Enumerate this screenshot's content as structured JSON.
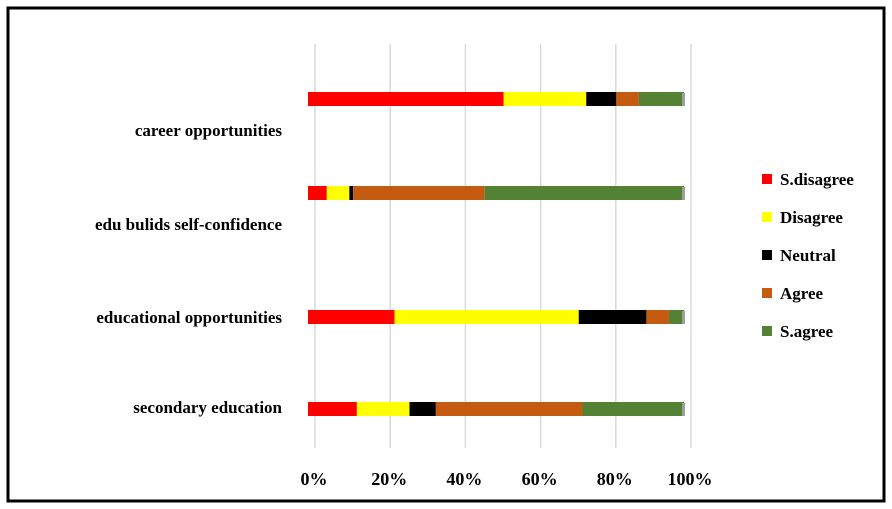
{
  "chart_data": {
    "type": "bar",
    "orientation": "horizontal",
    "stacked": "percent",
    "title": "",
    "xlabel": "",
    "ylabel": "",
    "xlim": [
      0,
      100
    ],
    "x_ticks": [
      "0%",
      "20%",
      "40%",
      "60%",
      "80%",
      "100%"
    ],
    "grid": "vertical",
    "legend_position": "right",
    "categories": [
      "career opportunities",
      "edu bulids self-confidence",
      "educational opportunities",
      "secondary education"
    ],
    "series": [
      {
        "name": "S.disagree",
        "color": "#ff0000",
        "values": [
          52,
          5,
          23,
          13
        ]
      },
      {
        "name": "Disagree",
        "color": "#ffff00",
        "values": [
          22,
          6,
          49,
          14
        ]
      },
      {
        "name": "Neutral",
        "color": "#000000",
        "values": [
          8,
          1,
          18,
          7
        ]
      },
      {
        "name": "Agree",
        "color": "#c55a11",
        "values": [
          6,
          35,
          6,
          39
        ]
      },
      {
        "name": "S.agree",
        "color": "#548235",
        "values": [
          12,
          53,
          4,
          27
        ]
      }
    ]
  }
}
